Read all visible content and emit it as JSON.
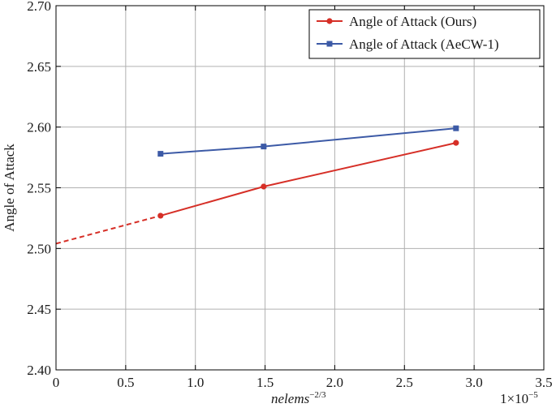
{
  "chart_data": {
    "type": "line",
    "xlabel": "nelems",
    "xlabel_exponent": "−2/3",
    "ylabel": "Angle of Attack",
    "x_multiplier_label": "1×10",
    "x_multiplier_exponent": "−5",
    "xlim": [
      0,
      3.5
    ],
    "ylim": [
      2.4,
      2.7
    ],
    "x_ticks": [
      0,
      0.5,
      1.0,
      1.5,
      2.0,
      2.5,
      3.0,
      3.5
    ],
    "x_tick_labels": [
      "0",
      "0.5",
      "1.0",
      "1.5",
      "2.0",
      "2.5",
      "3.0",
      "3.5"
    ],
    "y_ticks": [
      2.4,
      2.45,
      2.5,
      2.55,
      2.6,
      2.65,
      2.7
    ],
    "y_tick_labels": [
      "2.40",
      "2.45",
      "2.50",
      "2.55",
      "2.60",
      "2.65",
      "2.70"
    ],
    "grid": true,
    "legend_position": "top-right",
    "series": [
      {
        "name": "Angle of Attack (Ours)",
        "color": "#d62f27",
        "marker": "circle",
        "x": [
          0.75,
          1.49,
          2.87
        ],
        "y": [
          2.527,
          2.551,
          2.587
        ],
        "extrapolation": {
          "x": [
            0,
            0.75
          ],
          "y": [
            2.504,
            2.527
          ],
          "style": "dashed"
        }
      },
      {
        "name": "Angle of Attack (AeCW-1)",
        "color": "#3c5aa6",
        "marker": "square",
        "x": [
          0.75,
          1.49,
          2.87
        ],
        "y": [
          2.578,
          2.584,
          2.599
        ]
      }
    ]
  }
}
